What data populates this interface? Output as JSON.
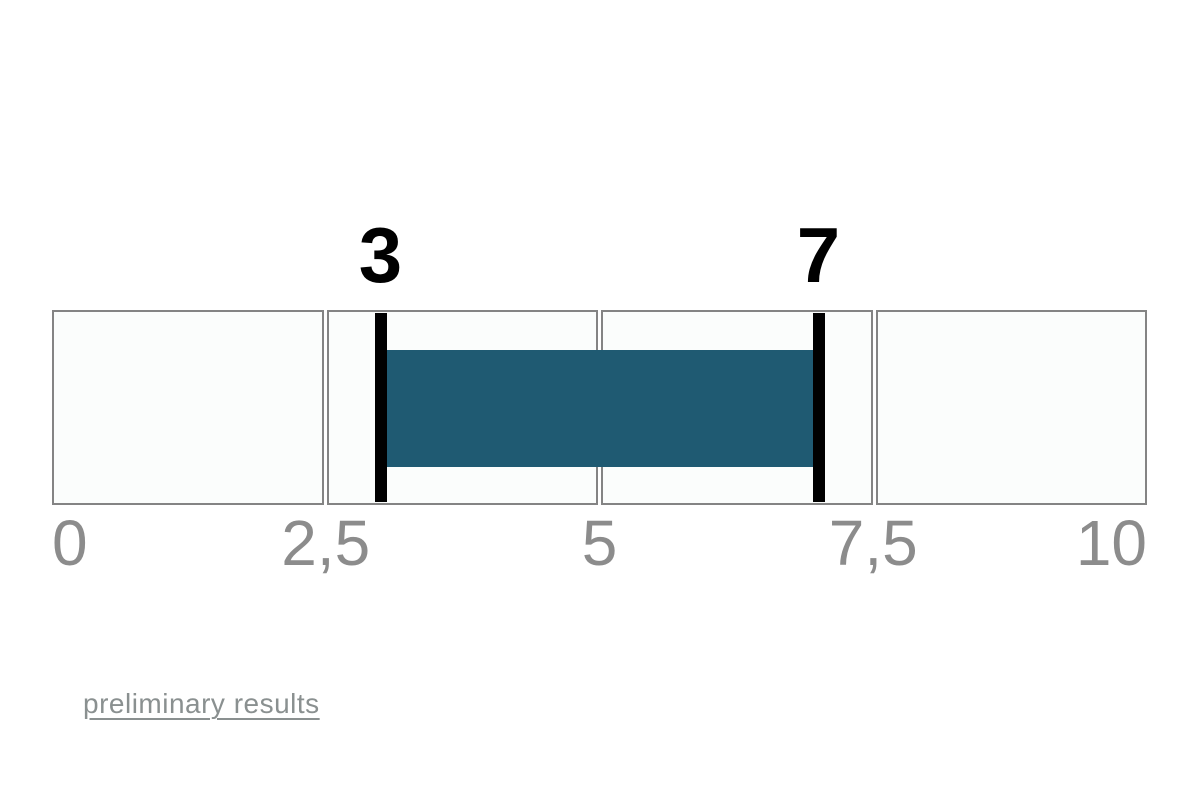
{
  "chart_data": {
    "type": "bar",
    "subtype": "range-slider-result",
    "title": "",
    "axis": {
      "min": 0,
      "max": 10,
      "tick_values": [
        0,
        2.5,
        5,
        7.5,
        10
      ],
      "tick_labels": [
        "0",
        "2,5",
        "5",
        "7,5",
        "10"
      ],
      "grid": "segmented-band",
      "segments": 4
    },
    "range": {
      "start": 3,
      "end": 7,
      "start_label": "3",
      "end_label": "7"
    },
    "colors": {
      "bar": "#1f5a72",
      "handle": "#000000",
      "handle_label": "#000000",
      "segment_fill": "#fbfdfc",
      "segment_border": "#848484",
      "tick_label": "#8c8c8c"
    }
  },
  "footer": {
    "link_label": "preliminary results",
    "link_color": "#8a9090"
  }
}
